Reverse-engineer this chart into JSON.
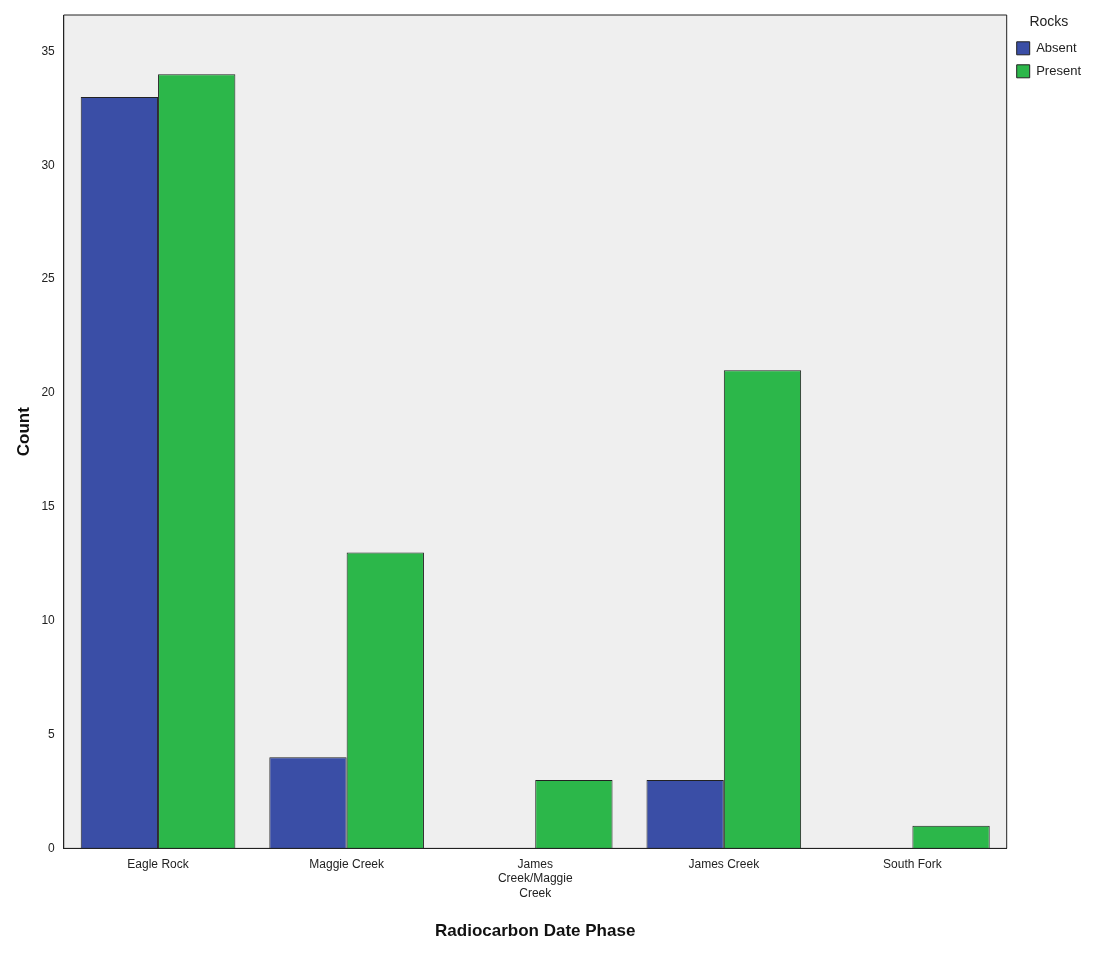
{
  "chart_data": {
    "type": "bar",
    "xlabel": "Radiocarbon Date Phase",
    "ylabel": "Count",
    "legend_title": "Rocks",
    "categories": [
      "Eagle Rock",
      "Maggie Creek",
      "James Creek/Maggie Creek",
      "James Creek",
      "South Fork"
    ],
    "series": [
      {
        "name": "Absent",
        "color": "#3a4ea6",
        "values": [
          33,
          4,
          0,
          3,
          0
        ]
      },
      {
        "name": "Present",
        "color": "#2cb74a",
        "values": [
          34,
          13,
          3,
          21,
          1
        ]
      }
    ],
    "ylim": [
      0,
      36.6
    ],
    "yticks": [
      0,
      5,
      10,
      15,
      20,
      25,
      30,
      35
    ],
    "grid": false,
    "legend": "top right"
  }
}
